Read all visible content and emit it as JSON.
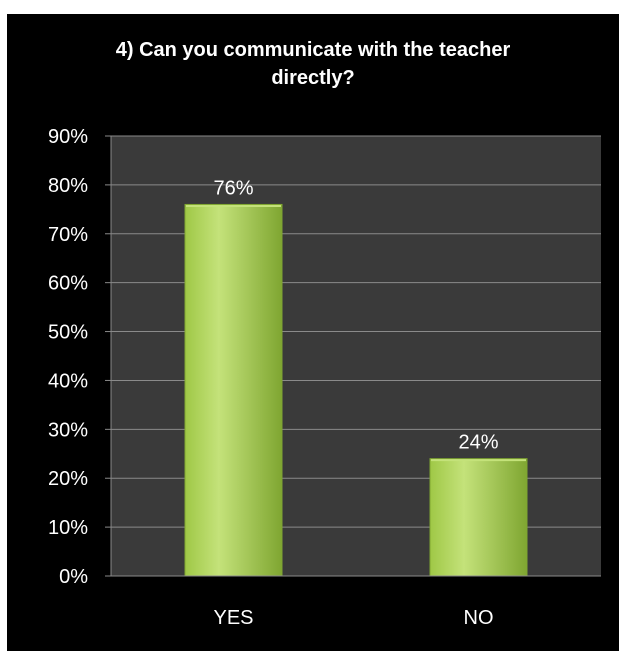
{
  "chart_data": {
    "type": "bar",
    "title_lines": [
      "4) Can you communicate with the teacher",
      "directly?"
    ],
    "categories": [
      "YES",
      "NO"
    ],
    "values": [
      76,
      24
    ],
    "data_labels": [
      "76%",
      "24%"
    ],
    "ylim": [
      0,
      90
    ],
    "y_ticks": [
      0,
      10,
      20,
      30,
      40,
      50,
      60,
      70,
      80,
      90
    ],
    "y_tick_labels": [
      "0%",
      "10%",
      "20%",
      "30%",
      "40%",
      "50%",
      "60%",
      "70%",
      "80%",
      "90%"
    ],
    "xlabel": "",
    "ylabel": "",
    "grid": true,
    "legend": "none",
    "colors": {
      "background": "#000000",
      "plot_area": "#3a3a3a",
      "gridline": "#8a8a8a",
      "bar_light": "#c4e27a",
      "bar_mid": "#9fc846",
      "bar_dark": "#7fa631",
      "text": "#ffffff"
    }
  }
}
